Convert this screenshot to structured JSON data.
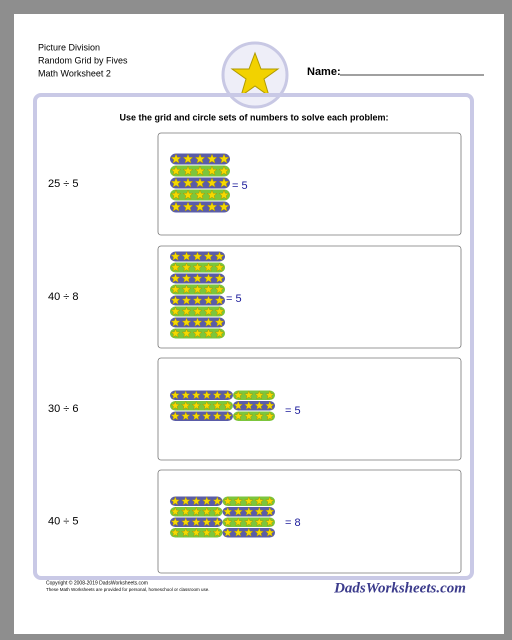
{
  "header": {
    "lines": [
      "Picture Division",
      "Random Grid by Fives",
      "Math Worksheet 2"
    ],
    "name_label": "Name:"
  },
  "instructions": "Use the grid and circle sets of numbers to solve each problem:",
  "problems": [
    {
      "expression": "25 ÷ 5",
      "answer": "= 5"
    },
    {
      "expression": "40 ÷ 8",
      "answer": "= 5"
    },
    {
      "expression": "30 ÷ 6",
      "answer": "= 5"
    },
    {
      "expression": "40 ÷ 5",
      "answer": "= 8"
    }
  ],
  "footer": {
    "lines": [
      "Copyright © 2008-2019 DadsWorksheets.com",
      "These Math Worksheets are provided for personal, homeschool or classroom use."
    ],
    "logo": "DadsWorksheets.com"
  }
}
